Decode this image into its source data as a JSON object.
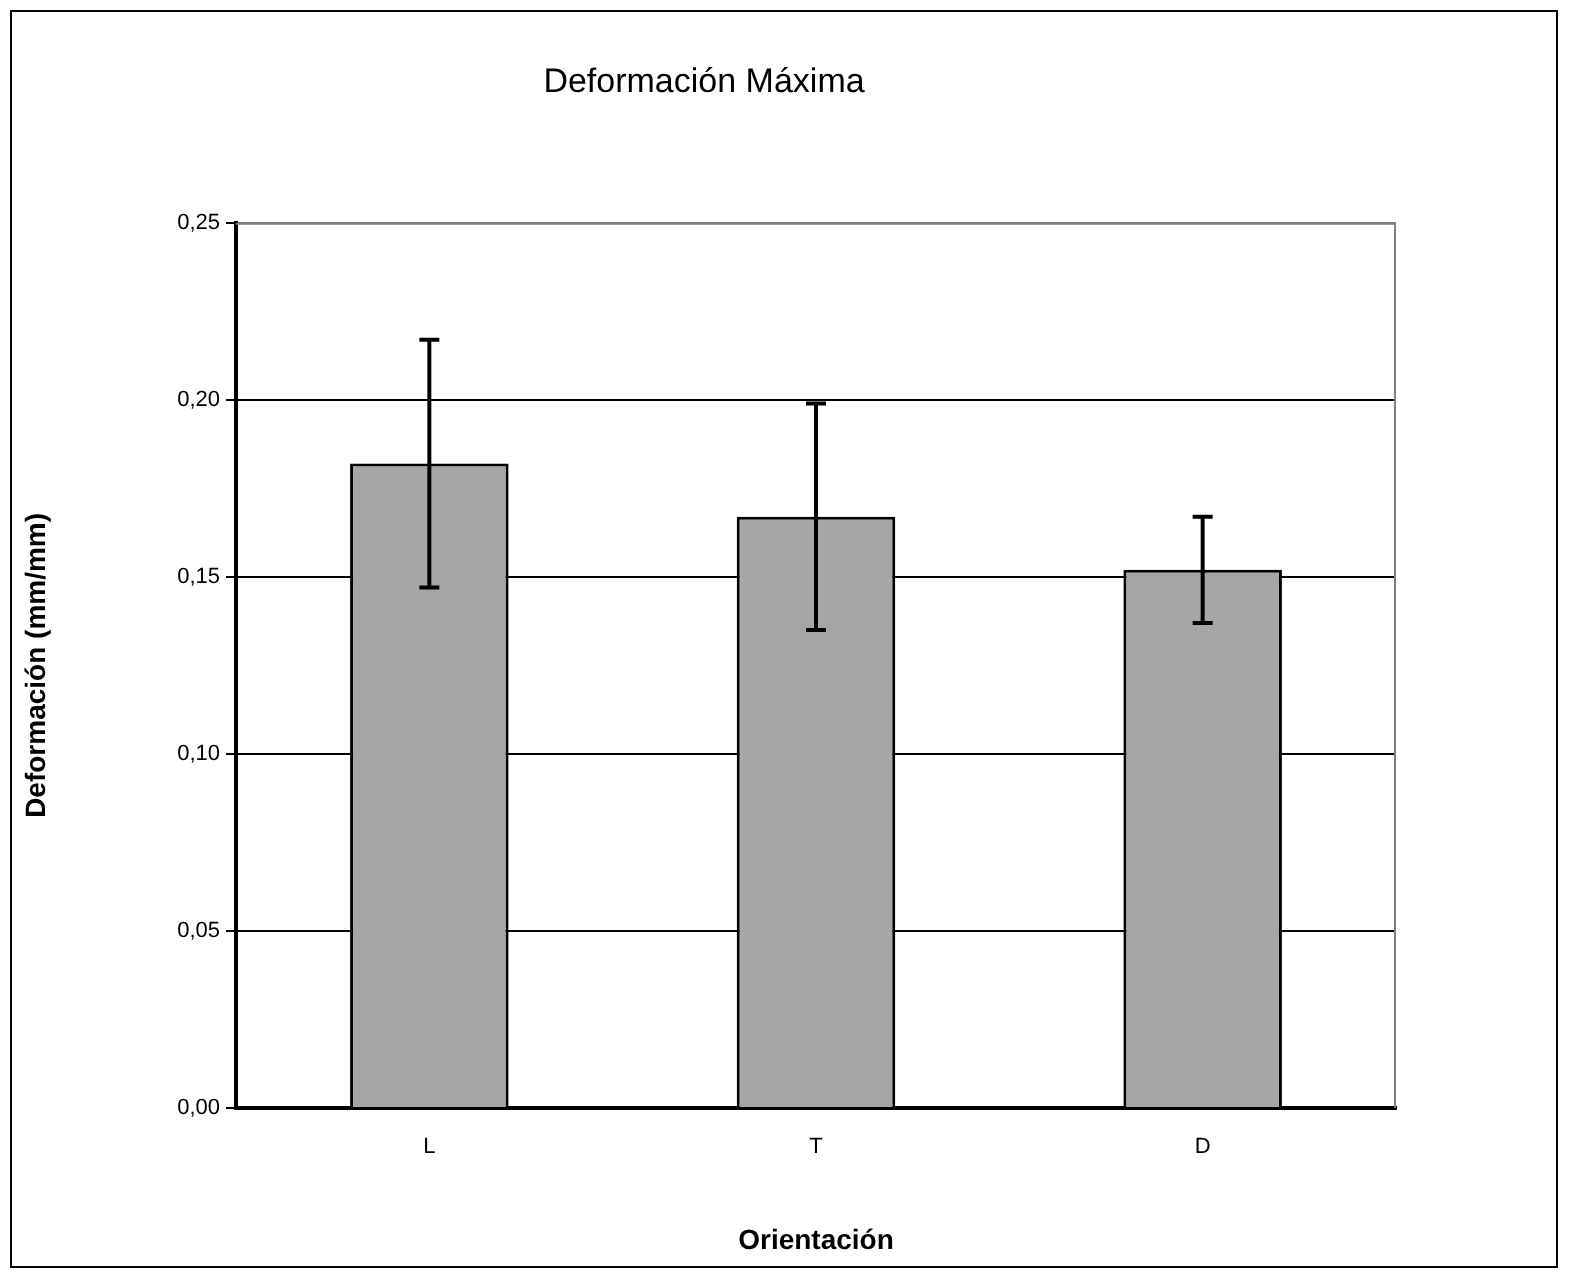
{
  "chart_data": {
    "type": "bar",
    "title": "Deformación Máxima",
    "xlabel": "Orientación",
    "ylabel": "Deformación (mm/mm)",
    "categories": [
      "L",
      "T",
      "D"
    ],
    "values": [
      0.182,
      0.167,
      0.152
    ],
    "errors": [
      0.035,
      0.032,
      0.015
    ],
    "color": "#a6a6a6",
    "ylim": [
      0,
      0.25
    ],
    "yticks": [
      {
        "value": 0,
        "label": "0,00"
      },
      {
        "value": 0.05,
        "label": "0,05"
      },
      {
        "value": 0.1,
        "label": "0,10"
      },
      {
        "value": 0.15,
        "label": "0,15"
      },
      {
        "value": 0.2,
        "label": "0,20"
      },
      {
        "value": 0.25,
        "label": "0,25"
      }
    ],
    "grid": "y",
    "legend": false
  }
}
